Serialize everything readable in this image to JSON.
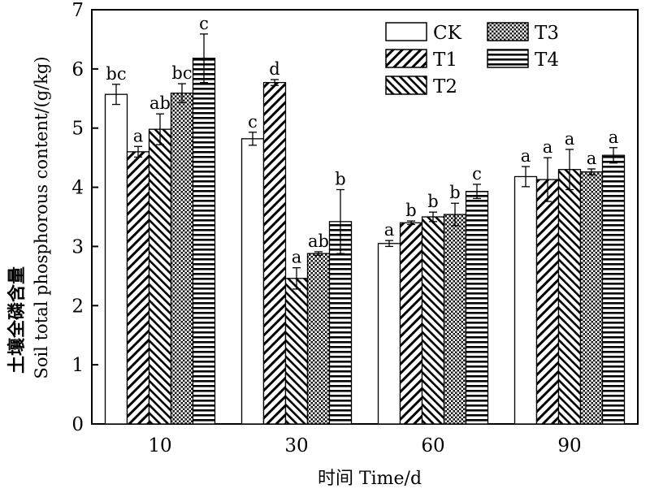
{
  "chart_data": {
    "type": "bar",
    "title": "",
    "xlabel": "时间 Time/d",
    "ylabel_cn": "土壤全磷含量",
    "ylabel": "Soil total phosphorous content/(g/kg)",
    "categories": [
      "10",
      "30",
      "60",
      "90"
    ],
    "ylim": [
      0,
      7
    ],
    "yticks": [
      0,
      1,
      2,
      3,
      4,
      5,
      6,
      7
    ],
    "grid": false,
    "legend_position": "top-right",
    "series": [
      {
        "name": "CK",
        "pattern": "blank",
        "values": [
          5.57,
          4.82,
          3.05,
          4.18
        ],
        "errors": [
          0.17,
          0.11,
          0.05,
          0.17
        ],
        "labels": [
          "bc",
          "c",
          "a",
          "a"
        ]
      },
      {
        "name": "T1",
        "pattern": "diag-up",
        "values": [
          4.6,
          5.77,
          3.4,
          4.13
        ],
        "errors": [
          0.09,
          0.05,
          0.03,
          0.37
        ],
        "labels": [
          "a",
          "d",
          "b",
          "a"
        ]
      },
      {
        "name": "T2",
        "pattern": "diag-down",
        "values": [
          4.98,
          2.46,
          3.5,
          4.3
        ],
        "errors": [
          0.26,
          0.18,
          0.08,
          0.34
        ],
        "labels": [
          "ab",
          "a",
          "b",
          "a"
        ]
      },
      {
        "name": "T3",
        "pattern": "checker",
        "values": [
          5.59,
          2.88,
          3.54,
          4.26
        ],
        "errors": [
          0.16,
          0.03,
          0.19,
          0.05
        ],
        "labels": [
          "bc",
          "ab",
          "b",
          "a"
        ]
      },
      {
        "name": "T4",
        "pattern": "horizontal",
        "values": [
          6.18,
          3.42,
          3.93,
          4.54
        ],
        "errors": [
          0.41,
          0.54,
          0.12,
          0.13
        ],
        "labels": [
          "c",
          "b",
          "c",
          "a"
        ]
      }
    ]
  }
}
